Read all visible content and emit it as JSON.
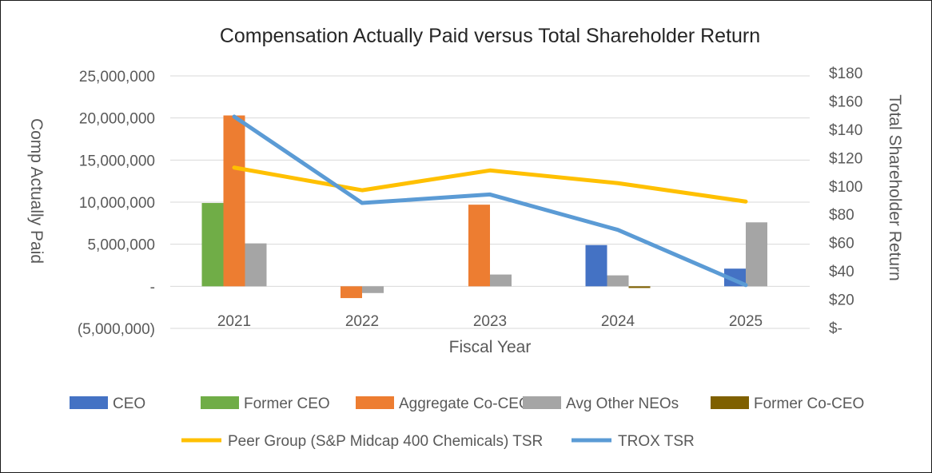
{
  "chart_data": {
    "type": "bar+line",
    "title": "Compensation Actually Paid versus Total Shareholder Return",
    "xlabel": "Fiscal Year",
    "ylabel": "Comp Actually Paid",
    "y2label": "Total Shareholder Return",
    "categories": [
      "2021",
      "2022",
      "2023",
      "2024",
      "2025"
    ],
    "ylim": [
      -5000000,
      25000000
    ],
    "y2lim": [
      0,
      180
    ],
    "yticks": [
      {
        "value": 25000000,
        "label": "25,000,000"
      },
      {
        "value": 20000000,
        "label": "20,000,000"
      },
      {
        "value": 15000000,
        "label": "15,000,000"
      },
      {
        "value": 10000000,
        "label": "10,000,000"
      },
      {
        "value": 5000000,
        "label": "5,000,000"
      },
      {
        "value": 0,
        "label": "-"
      },
      {
        "value": -5000000,
        "label": "(5,000,000)"
      }
    ],
    "y2ticks": [
      {
        "value": 180,
        "label": "$180"
      },
      {
        "value": 160,
        "label": "$160"
      },
      {
        "value": 140,
        "label": "$140"
      },
      {
        "value": 120,
        "label": "$120"
      },
      {
        "value": 100,
        "label": "$100"
      },
      {
        "value": 80,
        "label": "$80"
      },
      {
        "value": 60,
        "label": "$60"
      },
      {
        "value": 40,
        "label": "$40"
      },
      {
        "value": 20,
        "label": "$20"
      },
      {
        "value": 0,
        "label": "$-"
      }
    ],
    "grid": true,
    "bar_series": [
      {
        "name": "CEO",
        "color": "#4472C4",
        "values": [
          null,
          null,
          null,
          4900000,
          2100000
        ]
      },
      {
        "name": "Former CEO",
        "color": "#70AD47",
        "values": [
          9900000,
          null,
          null,
          null,
          null
        ]
      },
      {
        "name": "Aggregate Co-CEOs",
        "color": "#ED7D31",
        "values": [
          20300000,
          -1400000,
          9700000,
          null,
          null
        ]
      },
      {
        "name": "Avg Other NEOs",
        "color": "#A5A5A5",
        "values": [
          5100000,
          -800000,
          1400000,
          1300000,
          7600000
        ]
      },
      {
        "name": "Former Co-CEO",
        "color": "#7F6000",
        "values": [
          null,
          null,
          null,
          -200000,
          null
        ]
      }
    ],
    "line_series": [
      {
        "name": "Peer Group (S&P Midcap 400 Chemicals) TSR",
        "color": "#FFC000",
        "axis": "right",
        "values": [
          113,
          97,
          111,
          102,
          89
        ]
      },
      {
        "name": "TROX TSR",
        "color": "#5B9BD5",
        "axis": "right",
        "values": [
          149,
          88,
          94,
          69,
          30
        ]
      }
    ],
    "legend_position": "bottom"
  }
}
